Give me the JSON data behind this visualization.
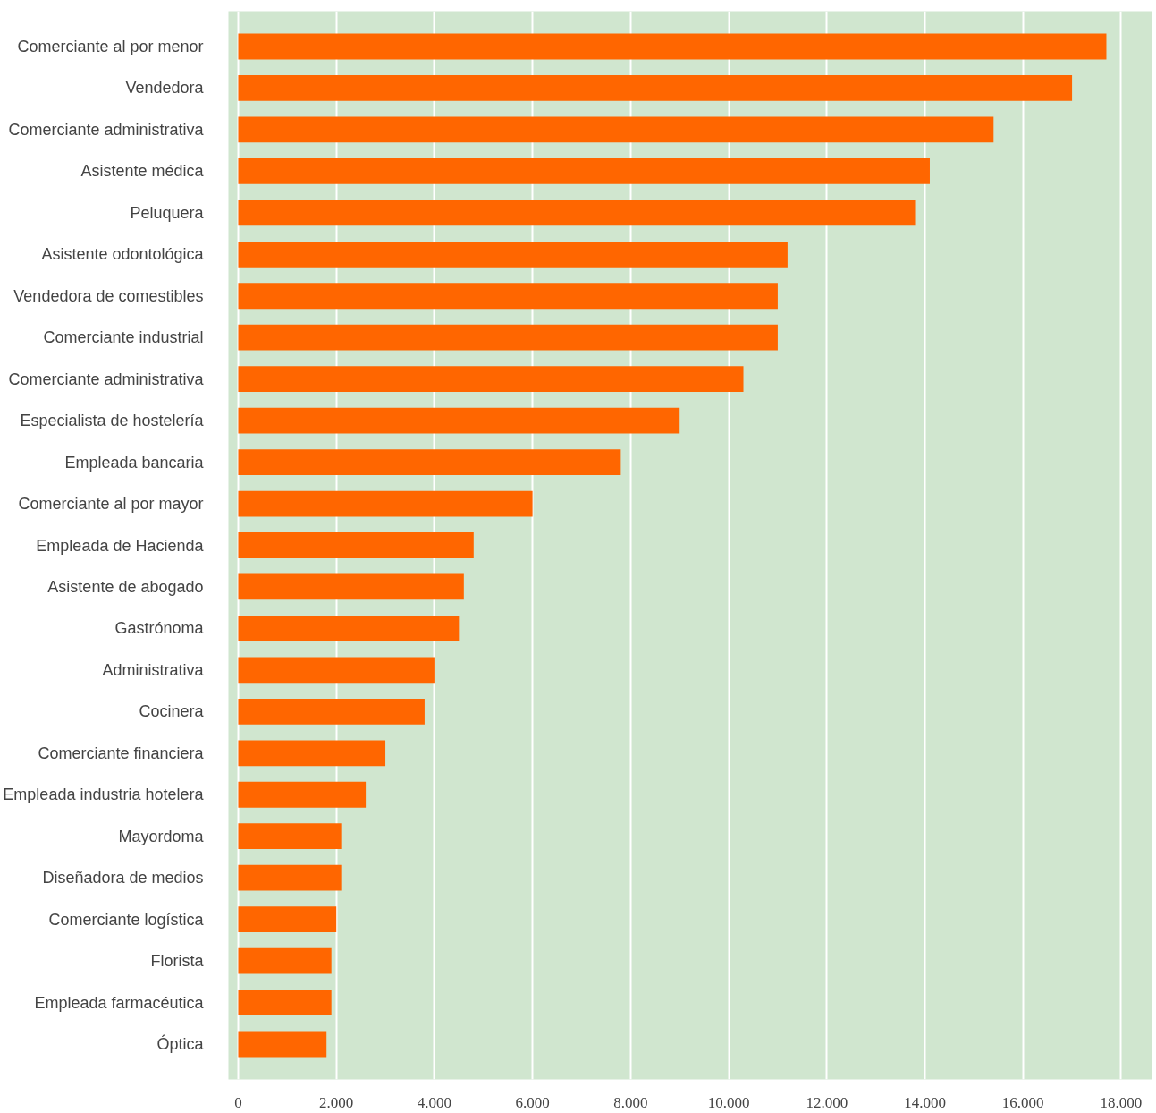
{
  "chart_data": {
    "type": "bar",
    "orientation": "horizontal",
    "categories": [
      "Comerciante al por menor",
      "Vendedora",
      "Comerciante administrativa",
      "Asistente médica",
      "Peluquera",
      "Asistente odontológica",
      "Vendedora de comestibles",
      "Comerciante industrial",
      "Comerciante administrativa",
      "Especialista de hostelería",
      "Empleada bancaria",
      "Comerciante al por mayor",
      "Empleada de Hacienda",
      "Asistente de abogado",
      "Gastrónoma",
      "Administrativa",
      "Cocinera",
      "Comerciante financiera",
      "Empleada industria hotelera",
      "Mayordoma",
      "Diseñadora de medios",
      "Comerciante logística",
      "Florista",
      "Empleada farmacéutica",
      "Óptica"
    ],
    "values": [
      17700,
      17000,
      15400,
      14100,
      13800,
      11200,
      11000,
      11000,
      10300,
      9000,
      7800,
      6000,
      4800,
      4600,
      4500,
      4000,
      3800,
      3000,
      2600,
      2100,
      2100,
      2000,
      1900,
      1900,
      1800
    ],
    "color": "#ff6600",
    "xlim": [
      -200,
      18630
    ],
    "xticks": [
      0,
      {
        "value": 2000,
        "label": "2.000"
      },
      {
        "value": 4000,
        "label": "4.000"
      },
      {
        "value": 6000,
        "label": "6.000"
      },
      {
        "value": 8000,
        "label": "8.000"
      },
      {
        "value": 10000,
        "label": "10.000"
      },
      {
        "value": 12000,
        "label": "12.000"
      },
      {
        "value": 14000,
        "label": "14.000"
      },
      {
        "value": 16000,
        "label": "16.000"
      },
      {
        "value": 18000,
        "label": "18.000"
      }
    ],
    "grid": "x"
  }
}
